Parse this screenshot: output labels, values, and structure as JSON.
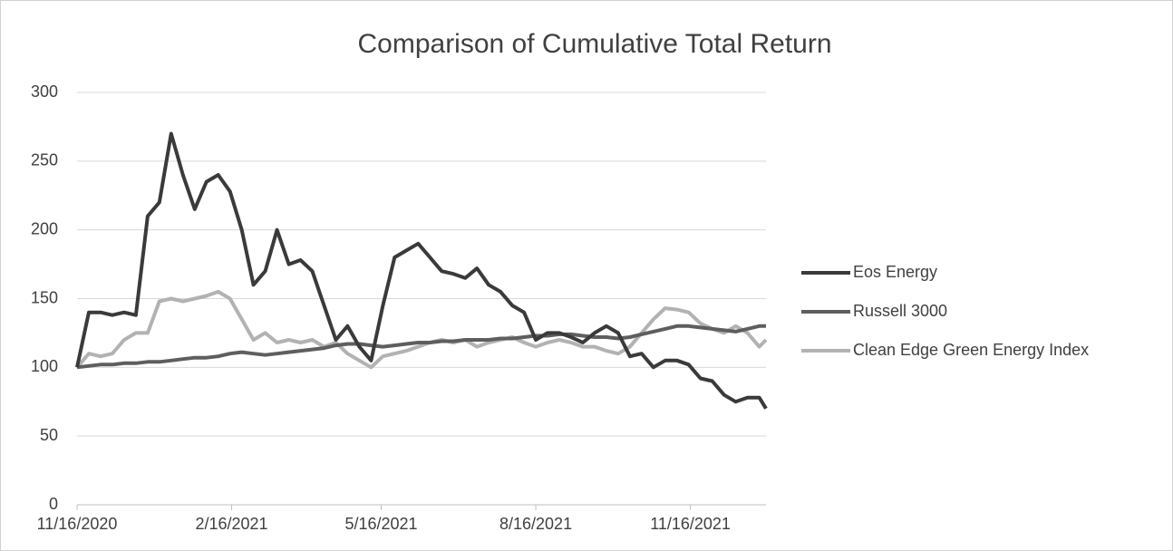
{
  "chart_data": {
    "type": "line",
    "title": "Comparison of Cumulative Total Return",
    "x": [
      "11/16/2020",
      "11/23/2020",
      "11/30/2020",
      "12/7/2020",
      "12/14/2020",
      "12/21/2020",
      "12/28/2020",
      "1/4/2021",
      "1/11/2021",
      "1/18/2021",
      "1/25/2021",
      "2/1/2021",
      "2/8/2021",
      "2/15/2021",
      "2/22/2021",
      "3/1/2021",
      "3/8/2021",
      "3/15/2021",
      "3/22/2021",
      "3/29/2021",
      "4/5/2021",
      "4/12/2021",
      "4/19/2021",
      "4/26/2021",
      "5/3/2021",
      "5/10/2021",
      "5/17/2021",
      "5/24/2021",
      "5/31/2021",
      "6/7/2021",
      "6/14/2021",
      "6/21/2021",
      "6/28/2021",
      "7/5/2021",
      "7/12/2021",
      "7/19/2021",
      "7/26/2021",
      "8/2/2021",
      "8/9/2021",
      "8/16/2021",
      "8/23/2021",
      "8/30/2021",
      "9/6/2021",
      "9/13/2021",
      "9/20/2021",
      "9/27/2021",
      "10/4/2021",
      "10/11/2021",
      "10/18/2021",
      "10/25/2021",
      "11/1/2021",
      "11/8/2021",
      "11/15/2021",
      "11/22/2021",
      "11/29/2021",
      "12/6/2021",
      "12/13/2021",
      "12/20/2021",
      "12/27/2021",
      "12/31/2021"
    ],
    "series": [
      {
        "name": "Eos Energy",
        "color": "#3a3a3a",
        "values": [
          100,
          140,
          140,
          138,
          140,
          138,
          210,
          220,
          270,
          240,
          215,
          235,
          240,
          228,
          200,
          160,
          170,
          200,
          175,
          178,
          170,
          145,
          120,
          130,
          115,
          105,
          145,
          180,
          185,
          190,
          180,
          170,
          168,
          165,
          172,
          160,
          155,
          145,
          140,
          120,
          125,
          125,
          122,
          118,
          125,
          130,
          125,
          108,
          110,
          100,
          105,
          105,
          102,
          92,
          90,
          80,
          75,
          78,
          78,
          70
        ]
      },
      {
        "name": "Russell 3000",
        "color": "#5e5e5e",
        "values": [
          100,
          101,
          102,
          102,
          103,
          103,
          104,
          104,
          105,
          106,
          107,
          107,
          108,
          110,
          111,
          110,
          109,
          110,
          111,
          112,
          113,
          114,
          116,
          117,
          117,
          116,
          115,
          116,
          117,
          118,
          118,
          119,
          119,
          120,
          120,
          120,
          121,
          121,
          122,
          123,
          123,
          124,
          124,
          123,
          122,
          122,
          121,
          122,
          124,
          126,
          128,
          130,
          130,
          129,
          128,
          127,
          126,
          128,
          130,
          130
        ]
      },
      {
        "name": "Clean Edge Green Energy Index",
        "color": "#b2b2b2",
        "values": [
          100,
          110,
          108,
          110,
          120,
          125,
          125,
          148,
          150,
          148,
          150,
          152,
          155,
          150,
          135,
          120,
          125,
          118,
          120,
          118,
          120,
          115,
          118,
          110,
          105,
          100,
          108,
          110,
          112,
          115,
          118,
          120,
          118,
          120,
          115,
          118,
          120,
          122,
          118,
          115,
          118,
          120,
          118,
          115,
          115,
          112,
          110,
          115,
          125,
          135,
          143,
          142,
          140,
          132,
          128,
          125,
          130,
          125,
          115,
          120
        ]
      }
    ],
    "xlim": [
      "11/16/2020",
      "12/31/2021"
    ],
    "xticks": [
      "11/16/2020",
      "2/16/2021",
      "5/16/2021",
      "8/16/2021",
      "11/16/2021"
    ],
    "ylim": [
      0,
      300
    ],
    "yticks": [
      0,
      50,
      100,
      150,
      200,
      250,
      300
    ],
    "grid": true,
    "legend": "right"
  }
}
